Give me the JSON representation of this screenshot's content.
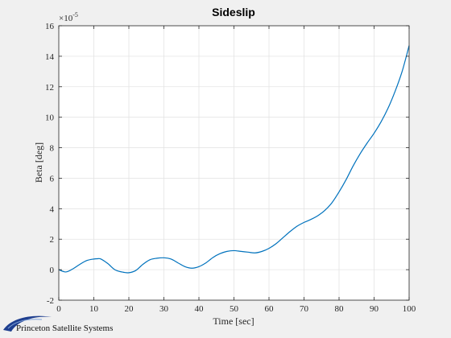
{
  "chart_data": {
    "type": "line",
    "title": "Sideslip",
    "xlabel": "Time [sec]",
    "ylabel": "Beta [deg]",
    "xlim": [
      0,
      100
    ],
    "ylim": [
      -2,
      16
    ],
    "xticks": [
      0,
      10,
      20,
      30,
      40,
      50,
      60,
      70,
      80,
      90,
      100
    ],
    "yticks": [
      -2,
      0,
      2,
      4,
      6,
      8,
      10,
      12,
      14,
      16
    ],
    "y_exponent_base": "10",
    "y_exponent_power": "-5",
    "grid": true,
    "series_color": "#0072bd",
    "series": [
      {
        "x": [
          0,
          2,
          4,
          6,
          8,
          10,
          11,
          12,
          14,
          16,
          18,
          20,
          22,
          24,
          26,
          28,
          30,
          32,
          34,
          36,
          38,
          40,
          42,
          44,
          46,
          48,
          50,
          52,
          54,
          56,
          58,
          60,
          62,
          64,
          66,
          68,
          70,
          72,
          74,
          76,
          78,
          80,
          82,
          84,
          86,
          88,
          90,
          92,
          94,
          96,
          98,
          100
        ],
        "values": [
          0.0,
          -0.15,
          0.05,
          0.35,
          0.6,
          0.7,
          0.72,
          0.7,
          0.4,
          0.0,
          -0.15,
          -0.2,
          -0.05,
          0.35,
          0.65,
          0.75,
          0.78,
          0.7,
          0.45,
          0.2,
          0.1,
          0.2,
          0.45,
          0.8,
          1.05,
          1.2,
          1.25,
          1.2,
          1.15,
          1.1,
          1.2,
          1.4,
          1.7,
          2.1,
          2.5,
          2.85,
          3.1,
          3.3,
          3.55,
          3.9,
          4.4,
          5.1,
          5.9,
          6.8,
          7.6,
          8.3,
          8.95,
          9.7,
          10.6,
          11.7,
          13.0,
          14.7
        ]
      }
    ]
  },
  "logo": {
    "text": "Princeton Satellite Systems"
  },
  "colors": {
    "figure_bg": "#f0f0f0",
    "axes_bg": "#ffffff",
    "grid": "#e4e4e4",
    "axis": "#262626"
  }
}
